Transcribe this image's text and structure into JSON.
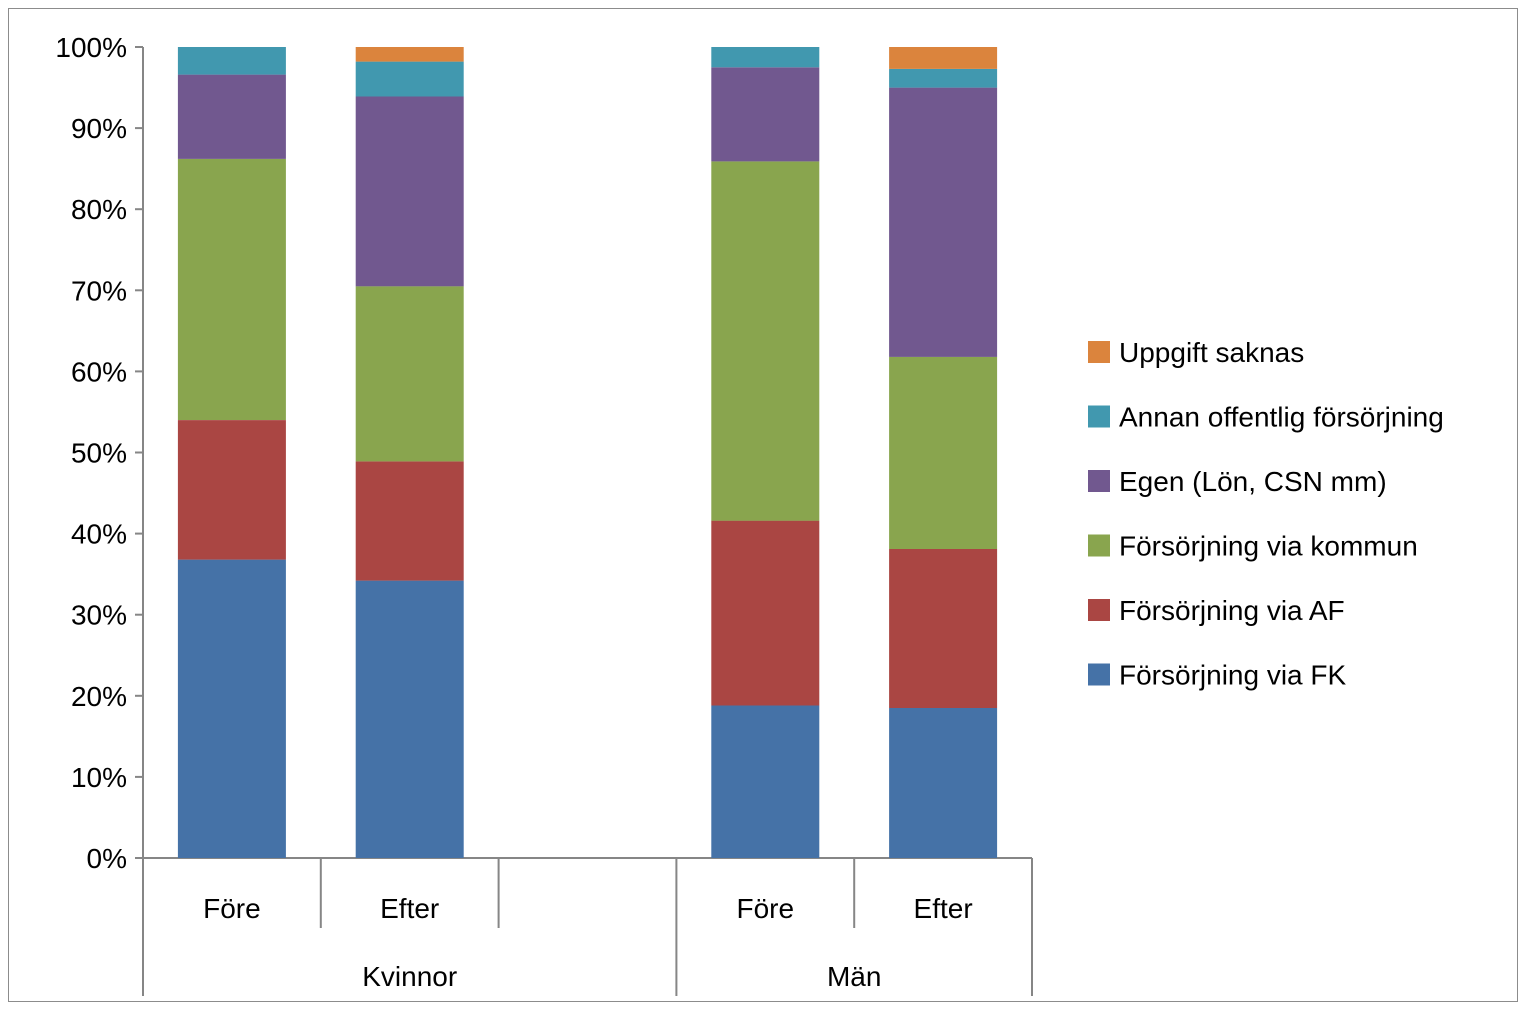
{
  "chart_data": {
    "type": "bar",
    "stacked": true,
    "normalized": true,
    "groups": [
      {
        "label": "Kvinnor",
        "categories": [
          "Före",
          "Efter"
        ]
      },
      {
        "label": "Män",
        "categories": [
          "Före",
          "Efter"
        ]
      }
    ],
    "categories": [
      "Före",
      "Efter",
      "",
      "Före",
      "Efter"
    ],
    "group_labels": [
      "Kvinnor",
      "Män"
    ],
    "yticks": [
      "0%",
      "10%",
      "20%",
      "30%",
      "40%",
      "50%",
      "60%",
      "70%",
      "80%",
      "90%",
      "100%"
    ],
    "ylim": [
      0,
      100
    ],
    "legend_position": "right",
    "series": [
      {
        "name": "Försörjning via FK",
        "color": "#4572a7",
        "values": [
          36.8,
          34.2,
          null,
          18.8,
          18.5
        ]
      },
      {
        "name": "Försörjning via AF",
        "color": "#aa4643",
        "values": [
          17.2,
          14.7,
          null,
          22.8,
          19.6
        ]
      },
      {
        "name": "Försörjning via kommun",
        "color": "#89a54e",
        "values": [
          32.2,
          21.6,
          null,
          44.3,
          23.7
        ]
      },
      {
        "name": "Egen (Lön, CSN mm)",
        "color": "#71588f",
        "values": [
          10.4,
          23.4,
          null,
          11.6,
          33.2
        ]
      },
      {
        "name": "Annan offentlig försörjning",
        "color": "#4198af",
        "values": [
          3.4,
          4.3,
          null,
          2.5,
          2.3
        ]
      },
      {
        "name": "Uppgift saknas",
        "color": "#db843d",
        "values": [
          0.0,
          1.8,
          null,
          0.0,
          2.7
        ]
      }
    ]
  }
}
